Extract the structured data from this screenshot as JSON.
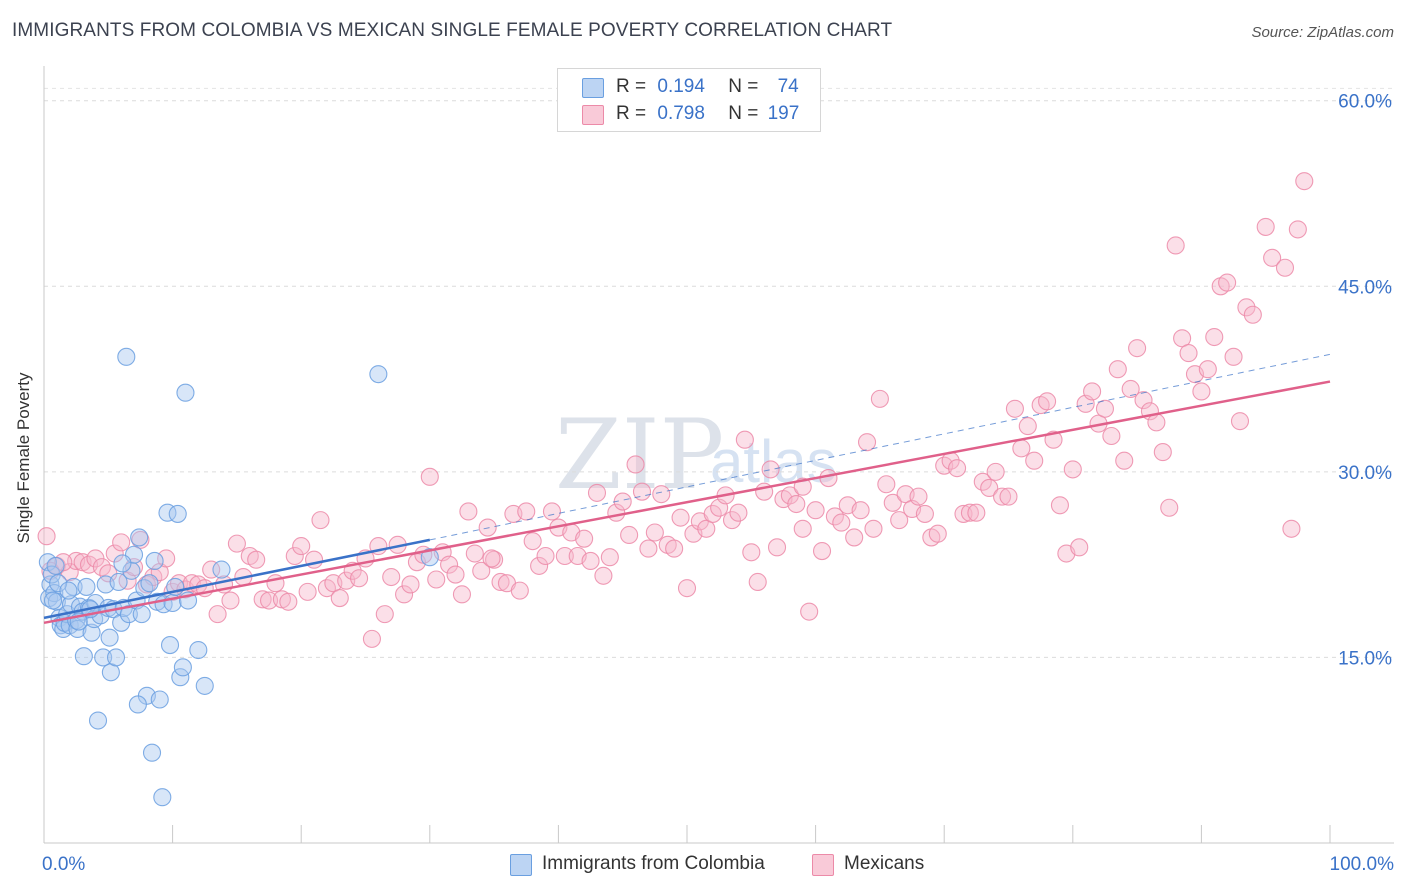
{
  "title": "IMMIGRANTS FROM COLOMBIA VS MEXICAN SINGLE FEMALE POVERTY CORRELATION CHART",
  "source": "Source: ZipAtlas.com",
  "watermark": {
    "main": "ZIP",
    "sub": "atlas"
  },
  "legend": {
    "rows": [
      {
        "r_label": "R =",
        "r_value": "0.194",
        "n_label": "N =",
        "n_value": "74",
        "color": "#a9c8f0"
      },
      {
        "r_label": "R =",
        "r_value": "0.798",
        "n_label": "N =",
        "n_value": "197",
        "color": "#f7b9cc"
      }
    ]
  },
  "bottom_legend": [
    {
      "label": "Immigrants from Colombia",
      "color": "#a9c8f0"
    },
    {
      "label": "Mexicans",
      "color": "#f7b9cc"
    }
  ],
  "chart_data": {
    "type": "scatter",
    "title": "IMMIGRANTS FROM COLOMBIA VS MEXICAN SINGLE FEMALE POVERTY CORRELATION CHART",
    "xlabel": "",
    "ylabel": "Single Female Poverty",
    "xlim": [
      0,
      100
    ],
    "ylim": [
      0,
      62
    ],
    "x_tick_labels": [
      "0.0%",
      "100.0%"
    ],
    "y_ticks": [
      15,
      30,
      45,
      60
    ],
    "y_tick_labels": [
      "15.0%",
      "30.0%",
      "45.0%",
      "60.0%"
    ],
    "grid": true,
    "legend_position": "top-center",
    "series": [
      {
        "name": "Immigrants from Colombia",
        "color": "#6a9fe0",
        "fill": "#a9c8f0",
        "trend": {
          "x": [
            0,
            30
          ],
          "y": [
            18.2,
            24.5
          ],
          "dashed_to": [
            100,
            39.5
          ],
          "color": "#3a72c8"
        },
        "points": [
          [
            0.3,
            22.7
          ],
          [
            0.4,
            19.8
          ],
          [
            0.5,
            20.9
          ],
          [
            0.6,
            21.7
          ],
          [
            0.8,
            20.2
          ],
          [
            0.9,
            22.4
          ],
          [
            1.0,
            19.5
          ],
          [
            1.2,
            18.2
          ],
          [
            1.3,
            17.6
          ],
          [
            1.5,
            17.3
          ],
          [
            1.6,
            17.8
          ],
          [
            1.8,
            18.5
          ],
          [
            2.0,
            17.6
          ],
          [
            2.1,
            19.3
          ],
          [
            2.3,
            20.7
          ],
          [
            2.5,
            18.0
          ],
          [
            2.6,
            17.3
          ],
          [
            2.8,
            19.1
          ],
          [
            3.0,
            18.7
          ],
          [
            3.1,
            15.1
          ],
          [
            3.3,
            20.7
          ],
          [
            3.5,
            19.0
          ],
          [
            3.7,
            17.0
          ],
          [
            3.9,
            18.1
          ],
          [
            4.0,
            19.4
          ],
          [
            4.2,
            9.9
          ],
          [
            4.4,
            18.4
          ],
          [
            4.6,
            15.0
          ],
          [
            4.8,
            20.9
          ],
          [
            5.0,
            19.0
          ],
          [
            5.2,
            13.8
          ],
          [
            5.4,
            18.9
          ],
          [
            5.6,
            15.0
          ],
          [
            5.8,
            21.1
          ],
          [
            6.0,
            17.8
          ],
          [
            6.2,
            19.0
          ],
          [
            6.4,
            39.3
          ],
          [
            6.6,
            18.5
          ],
          [
            6.8,
            22.0
          ],
          [
            7.0,
            23.3
          ],
          [
            7.2,
            19.6
          ],
          [
            7.4,
            24.7
          ],
          [
            7.6,
            18.5
          ],
          [
            7.8,
            20.6
          ],
          [
            8.0,
            11.9
          ],
          [
            8.2,
            21.0
          ],
          [
            8.4,
            7.3
          ],
          [
            8.6,
            22.8
          ],
          [
            8.8,
            19.5
          ],
          [
            9.0,
            11.6
          ],
          [
            9.3,
            19.3
          ],
          [
            9.6,
            26.7
          ],
          [
            9.8,
            16.0
          ],
          [
            10.0,
            19.4
          ],
          [
            10.2,
            20.7
          ],
          [
            10.4,
            26.6
          ],
          [
            10.6,
            13.4
          ],
          [
            10.8,
            14.2
          ],
          [
            11.0,
            36.4
          ],
          [
            11.2,
            19.6
          ],
          [
            12.0,
            15.6
          ],
          [
            12.5,
            12.7
          ],
          [
            13.8,
            22.1
          ],
          [
            26.0,
            37.9
          ],
          [
            30.0,
            23.1
          ],
          [
            9.2,
            3.7
          ],
          [
            1.1,
            21.0
          ],
          [
            2.7,
            17.9
          ],
          [
            7.3,
            11.2
          ],
          [
            6.1,
            22.6
          ],
          [
            3.6,
            18.9
          ],
          [
            0.7,
            19.6
          ],
          [
            1.9,
            20.4
          ],
          [
            5.1,
            16.6
          ]
        ]
      },
      {
        "name": "Mexicans",
        "color": "#ec8aa8",
        "fill": "#f7b9cc",
        "trend": {
          "x": [
            0,
            100
          ],
          "y": [
            17.8,
            37.3
          ],
          "color": "#e0608a"
        },
        "points": [
          [
            0.2,
            24.8
          ],
          [
            1.0,
            22.4
          ],
          [
            2.0,
            21.9
          ],
          [
            2.5,
            22.8
          ],
          [
            3.0,
            22.7
          ],
          [
            3.5,
            22.5
          ],
          [
            4.0,
            23.0
          ],
          [
            4.5,
            22.3
          ],
          [
            5.0,
            21.8
          ],
          [
            5.5,
            23.4
          ],
          [
            6.0,
            24.3
          ],
          [
            6.5,
            21.2
          ],
          [
            7.0,
            22.3
          ],
          [
            7.5,
            24.5
          ],
          [
            8.0,
            20.9
          ],
          [
            8.5,
            21.5
          ],
          [
            9.0,
            21.9
          ],
          [
            9.5,
            23.0
          ],
          [
            10.0,
            20.3
          ],
          [
            10.5,
            21.0
          ],
          [
            11.0,
            20.5
          ],
          [
            11.5,
            21.0
          ],
          [
            12.0,
            20.9
          ],
          [
            12.5,
            20.6
          ],
          [
            13.0,
            22.1
          ],
          [
            13.5,
            18.5
          ],
          [
            14.0,
            20.9
          ],
          [
            14.5,
            19.6
          ],
          [
            15.0,
            24.2
          ],
          [
            15.5,
            21.5
          ],
          [
            16.0,
            23.2
          ],
          [
            16.5,
            22.9
          ],
          [
            17.0,
            19.7
          ],
          [
            17.5,
            19.6
          ],
          [
            18.0,
            21.0
          ],
          [
            18.5,
            19.7
          ],
          [
            19.0,
            19.5
          ],
          [
            19.5,
            23.2
          ],
          [
            20.0,
            24.0
          ],
          [
            20.5,
            20.3
          ],
          [
            21.0,
            22.9
          ],
          [
            21.5,
            26.1
          ],
          [
            22.0,
            20.6
          ],
          [
            22.5,
            21.0
          ],
          [
            23.0,
            19.8
          ],
          [
            23.5,
            21.2
          ],
          [
            24.0,
            22.0
          ],
          [
            24.5,
            21.4
          ],
          [
            25.0,
            23.0
          ],
          [
            25.5,
            16.5
          ],
          [
            26.0,
            24.0
          ],
          [
            26.5,
            18.5
          ],
          [
            27.0,
            21.5
          ],
          [
            27.5,
            24.1
          ],
          [
            28.0,
            20.1
          ],
          [
            28.5,
            20.9
          ],
          [
            29.0,
            22.7
          ],
          [
            29.5,
            23.3
          ],
          [
            30.0,
            29.6
          ],
          [
            30.5,
            21.3
          ],
          [
            31.0,
            23.5
          ],
          [
            31.5,
            22.5
          ],
          [
            32.0,
            21.7
          ],
          [
            32.5,
            20.1
          ],
          [
            33.0,
            26.8
          ],
          [
            33.5,
            23.4
          ],
          [
            34.0,
            22.0
          ],
          [
            34.5,
            25.5
          ],
          [
            35.0,
            22.9
          ],
          [
            35.5,
            21.1
          ],
          [
            36.0,
            21.0
          ],
          [
            36.5,
            26.6
          ],
          [
            37.0,
            20.4
          ],
          [
            37.5,
            26.8
          ],
          [
            38.0,
            24.4
          ],
          [
            38.5,
            22.4
          ],
          [
            39.0,
            23.2
          ],
          [
            39.5,
            26.8
          ],
          [
            40.0,
            25.5
          ],
          [
            40.5,
            23.2
          ],
          [
            41.0,
            25.1
          ],
          [
            41.5,
            23.2
          ],
          [
            42.0,
            24.6
          ],
          [
            42.5,
            22.8
          ],
          [
            43.0,
            28.3
          ],
          [
            43.5,
            21.6
          ],
          [
            44.0,
            23.1
          ],
          [
            44.5,
            26.7
          ],
          [
            45.0,
            27.6
          ],
          [
            45.5,
            24.9
          ],
          [
            46.0,
            30.6
          ],
          [
            46.5,
            28.4
          ],
          [
            47.0,
            23.8
          ],
          [
            47.5,
            25.1
          ],
          [
            48.0,
            28.2
          ],
          [
            48.5,
            24.1
          ],
          [
            49.0,
            23.8
          ],
          [
            49.5,
            26.3
          ],
          [
            50.0,
            20.6
          ],
          [
            50.5,
            25.0
          ],
          [
            51.0,
            26.0
          ],
          [
            51.5,
            25.4
          ],
          [
            52.0,
            26.6
          ],
          [
            52.5,
            27.1
          ],
          [
            53.0,
            28.1
          ],
          [
            53.5,
            26.1
          ],
          [
            54.0,
            26.7
          ],
          [
            54.5,
            32.6
          ],
          [
            55.0,
            23.5
          ],
          [
            55.5,
            21.1
          ],
          [
            56.0,
            28.4
          ],
          [
            56.5,
            30.2
          ],
          [
            57.0,
            23.9
          ],
          [
            57.5,
            27.8
          ],
          [
            58.0,
            28.1
          ],
          [
            58.5,
            27.4
          ],
          [
            59.0,
            25.4
          ],
          [
            59.5,
            18.7
          ],
          [
            60.0,
            26.9
          ],
          [
            60.5,
            23.6
          ],
          [
            61.0,
            29.5
          ],
          [
            61.5,
            26.4
          ],
          [
            62.0,
            25.9
          ],
          [
            62.5,
            27.3
          ],
          [
            63.0,
            24.7
          ],
          [
            63.5,
            26.9
          ],
          [
            64.0,
            32.4
          ],
          [
            64.5,
            25.4
          ],
          [
            65.0,
            35.9
          ],
          [
            65.5,
            29.0
          ],
          [
            66.0,
            27.5
          ],
          [
            66.5,
            26.1
          ],
          [
            67.0,
            28.2
          ],
          [
            67.5,
            27.0
          ],
          [
            68.0,
            28.0
          ],
          [
            68.5,
            26.6
          ],
          [
            69.0,
            24.7
          ],
          [
            69.5,
            25.0
          ],
          [
            70.0,
            30.5
          ],
          [
            70.5,
            30.9
          ],
          [
            71.0,
            30.3
          ],
          [
            71.5,
            26.6
          ],
          [
            72.0,
            26.7
          ],
          [
            72.5,
            26.7
          ],
          [
            73.0,
            29.2
          ],
          [
            73.5,
            28.7
          ],
          [
            74.0,
            30.0
          ],
          [
            74.5,
            28.0
          ],
          [
            75.0,
            28.0
          ],
          [
            75.5,
            35.1
          ],
          [
            76.0,
            31.9
          ],
          [
            76.5,
            33.7
          ],
          [
            77.0,
            30.9
          ],
          [
            77.5,
            35.4
          ],
          [
            78.0,
            35.7
          ],
          [
            78.5,
            32.6
          ],
          [
            79.0,
            27.3
          ],
          [
            79.5,
            23.4
          ],
          [
            80.0,
            30.2
          ],
          [
            80.5,
            23.9
          ],
          [
            81.0,
            35.5
          ],
          [
            81.5,
            36.5
          ],
          [
            82.0,
            33.9
          ],
          [
            82.5,
            35.1
          ],
          [
            83.0,
            32.9
          ],
          [
            83.5,
            38.3
          ],
          [
            84.0,
            30.9
          ],
          [
            84.5,
            36.7
          ],
          [
            85.0,
            40.0
          ],
          [
            85.5,
            35.8
          ],
          [
            86.0,
            34.9
          ],
          [
            86.5,
            34.0
          ],
          [
            87.0,
            31.6
          ],
          [
            87.5,
            27.1
          ],
          [
            88.0,
            48.3
          ],
          [
            88.5,
            40.8
          ],
          [
            89.0,
            39.6
          ],
          [
            89.5,
            37.9
          ],
          [
            90.0,
            36.5
          ],
          [
            90.5,
            38.3
          ],
          [
            91.0,
            40.9
          ],
          [
            91.5,
            45.0
          ],
          [
            92.0,
            45.3
          ],
          [
            92.5,
            39.3
          ],
          [
            93.0,
            34.1
          ],
          [
            93.5,
            43.3
          ],
          [
            94.0,
            42.7
          ],
          [
            95.0,
            49.8
          ],
          [
            95.5,
            47.3
          ],
          [
            96.5,
            46.5
          ],
          [
            97.0,
            25.4
          ],
          [
            97.5,
            49.6
          ],
          [
            98.0,
            53.5
          ],
          [
            0.5,
            22.0
          ],
          [
            1.5,
            22.7
          ],
          [
            34.8,
            23.0
          ],
          [
            59.0,
            28.8
          ]
        ]
      }
    ]
  }
}
